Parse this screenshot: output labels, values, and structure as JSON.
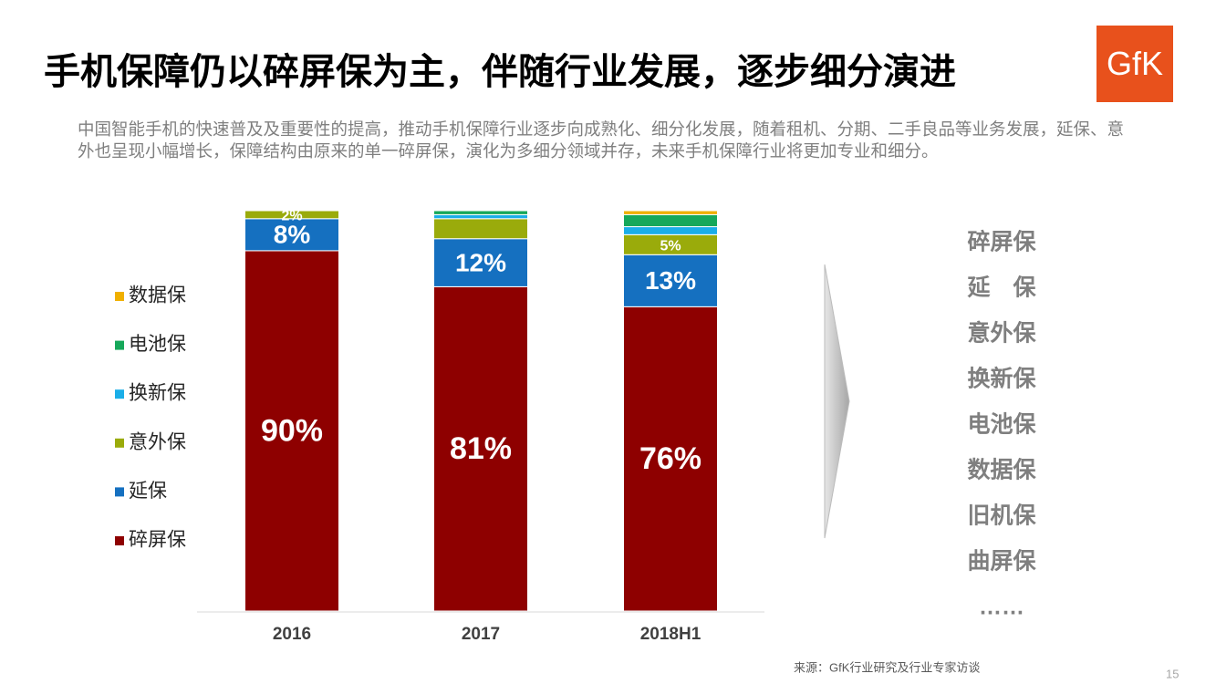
{
  "header": {
    "title": "手机保障仍以碎屏保为主，伴随行业发展，逐步细分演进",
    "subtitle": "中国智能手机的快速普及及重要性的提高，推动手机保障行业逐步向成熟化、细分化发展，随着租机、分期、二手良品等业务发展，延保、意外也呈现小幅增长，保障结构由原来的单一碎屏保，演化为多细分领域并存，未来手机保障行业将更加专业和细分。",
    "logo": "GfK"
  },
  "chart_data": {
    "type": "stacked_bar",
    "categories": [
      "2016",
      "2017",
      "2018H1"
    ],
    "ylim": [
      0,
      100
    ],
    "series": [
      {
        "name": "碎屏保",
        "color": "#8e0000",
        "values": [
          90,
          81,
          76
        ],
        "value_labels": [
          "90%",
          "81%",
          "76%"
        ]
      },
      {
        "name": "延保",
        "color": "#1570c0",
        "values": [
          8,
          12,
          13
        ],
        "value_labels": [
          "8%",
          "12%",
          "13%"
        ]
      },
      {
        "name": "意外保",
        "color": "#9aab0b",
        "values": [
          2,
          5,
          5
        ],
        "value_labels": [
          "2%",
          null,
          "5%"
        ]
      },
      {
        "name": "换新保",
        "color": "#1aaee8",
        "values": [
          0,
          1,
          2
        ]
      },
      {
        "name": "电池保",
        "color": "#16a85a",
        "values": [
          0,
          1,
          3
        ]
      },
      {
        "name": "数据保",
        "color": "#f0b000",
        "values": [
          0,
          0,
          1
        ]
      }
    ]
  },
  "side_list": [
    "碎屏保",
    "延　保",
    "意外保",
    "换新保",
    "电池保",
    "数据保",
    "旧机保",
    "曲屏保",
    "……"
  ],
  "footer": {
    "source": "来源：GfK行业研究及行业专家访谈",
    "page": "15"
  }
}
